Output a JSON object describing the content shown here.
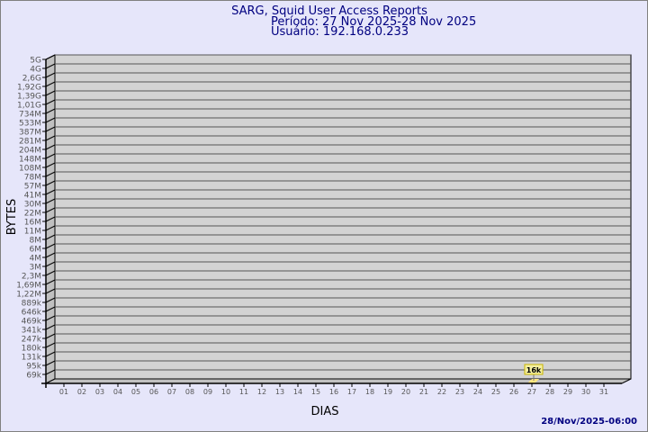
{
  "chart_data": {
    "type": "bar",
    "title": "SARG, Squid User Access Reports",
    "subtitle_period": "Período: 27 Nov 2025-28 Nov 2025",
    "subtitle_user": "Usuário: 192.168.0.233",
    "xlabel": "DIAS",
    "ylabel": "BYTES",
    "y_scale": "log",
    "y_tick_labels": [
      "5G",
      "4G",
      "2,6G",
      "1,92G",
      "1,39G",
      "1,01G",
      "734M",
      "533M",
      "387M",
      "281M",
      "204M",
      "148M",
      "108M",
      "78M",
      "57M",
      "41M",
      "30M",
      "22M",
      "16M",
      "11M",
      "8M",
      "6M",
      "4M",
      "3M",
      "2,3M",
      "1,69M",
      "1,22M",
      "889k",
      "646k",
      "469k",
      "341k",
      "247k",
      "180k",
      "131k",
      "95k",
      "69k"
    ],
    "categories": [
      "01",
      "02",
      "03",
      "04",
      "05",
      "06",
      "07",
      "08",
      "09",
      "10",
      "11",
      "12",
      "13",
      "14",
      "15",
      "16",
      "17",
      "18",
      "19",
      "20",
      "21",
      "22",
      "23",
      "24",
      "25",
      "26",
      "27",
      "28",
      "29",
      "30",
      "31"
    ],
    "bars": [
      {
        "category": "27",
        "value_label": "16k",
        "value": 16000
      }
    ],
    "grid": true,
    "colors": {
      "background": "#e6e6fa",
      "wall": "#d3d3d3",
      "side_wall": "#c0c0c0",
      "bar": "#ffe680",
      "text": "#000080",
      "tick_text": "#555555"
    }
  },
  "footer": {
    "timestamp": "28/Nov/2025-06:00"
  }
}
